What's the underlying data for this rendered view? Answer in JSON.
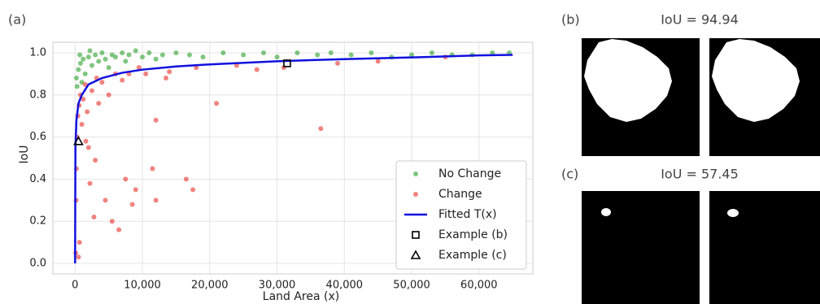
{
  "chart_data": {
    "type": "scatter",
    "panel_label": "(a)",
    "xlabel": "Land Area (x)",
    "ylabel": "IoU",
    "xlim": [
      -3300,
      68000
    ],
    "ylim": [
      -0.05,
      1.05
    ],
    "xticks": [
      {
        "value": 0,
        "label": "0"
      },
      {
        "value": 10000,
        "label": "10,000"
      },
      {
        "value": 20000,
        "label": "20,000"
      },
      {
        "value": 30000,
        "label": "30,000"
      },
      {
        "value": 40000,
        "label": "40,000"
      },
      {
        "value": 50000,
        "label": "50,000"
      },
      {
        "value": 60000,
        "label": "60,000"
      }
    ],
    "yticks": [
      {
        "value": 0,
        "label": "0.0"
      },
      0.2,
      0.4,
      0.6,
      0.8,
      {
        "value": 1,
        "label": "1.0"
      }
    ],
    "grid": true,
    "legend": "lower right",
    "series": [
      {
        "name": "No Change",
        "kind": "scatter",
        "color": "#2ca02c",
        "x": [
          200,
          500,
          800,
          1200,
          1500,
          2000,
          2500,
          3000,
          3500,
          4000,
          4500,
          5000,
          5500,
          6000,
          7000,
          7500,
          8000,
          9000,
          10000,
          11000,
          12000,
          13000,
          15000,
          17000,
          19000,
          22000,
          25000,
          28000,
          30000,
          33000,
          36000,
          38000,
          41000,
          44000,
          47000,
          50000,
          53000,
          56000,
          59000,
          62000,
          64500,
          300,
          1000,
          700,
          2200
        ],
        "y": [
          0.88,
          0.92,
          0.95,
          0.97,
          0.9,
          0.98,
          0.94,
          0.99,
          0.96,
          1.0,
          0.97,
          0.93,
          0.99,
          0.98,
          1.0,
          0.96,
          0.99,
          1.01,
          0.98,
          1.0,
          0.97,
          0.99,
          1.0,
          0.99,
          0.98,
          1.0,
          0.99,
          1.0,
          0.98,
          1.0,
          0.99,
          1.0,
          0.99,
          1.0,
          0.98,
          0.99,
          1.0,
          0.99,
          0.99,
          1.0,
          1.0,
          0.84,
          0.86,
          0.99,
          1.01
        ]
      },
      {
        "name": "Change",
        "kind": "scatter",
        "color": "#e8302a",
        "x": [
          100,
          150,
          200,
          300,
          400,
          600,
          800,
          1000,
          1200,
          1500,
          1800,
          2000,
          2200,
          2500,
          2800,
          3000,
          3500,
          4000,
          4500,
          5000,
          5500,
          6000,
          6500,
          7000,
          7500,
          8000,
          8500,
          9000,
          9500,
          10500,
          11500,
          12000,
          13500,
          16500,
          17500,
          18000,
          21000,
          24000,
          27000,
          31000,
          36500,
          39000,
          45000,
          55000,
          650,
          1600,
          3200,
          500,
          12000,
          14000
        ],
        "y": [
          0.05,
          0.3,
          0.45,
          0.6,
          0.7,
          0.75,
          0.8,
          0.66,
          0.78,
          0.85,
          0.72,
          0.55,
          0.38,
          0.82,
          0.22,
          0.49,
          0.76,
          0.86,
          0.3,
          0.8,
          0.2,
          0.9,
          0.16,
          0.87,
          0.4,
          0.9,
          0.28,
          0.35,
          0.93,
          0.9,
          0.45,
          0.3,
          0.88,
          0.4,
          0.35,
          0.93,
          0.76,
          0.94,
          0.92,
          0.93,
          0.64,
          0.95,
          0.96,
          0.98,
          0.1,
          0.58,
          0.88,
          0.03,
          0.68,
          0.91
        ]
      },
      {
        "name": "Fitted T(x)",
        "kind": "line",
        "color": "#1010e0",
        "x": [
          0,
          50,
          200,
          500,
          1000,
          2000,
          4000,
          7000,
          10000,
          15000,
          20000,
          30000,
          40000,
          50000,
          60000,
          65000
        ],
        "y": [
          0,
          0.55,
          0.68,
          0.76,
          0.8,
          0.85,
          0.88,
          0.905,
          0.92,
          0.935,
          0.945,
          0.96,
          0.97,
          0.978,
          0.988,
          0.99
        ]
      },
      {
        "name": "Example (b)",
        "kind": "marker",
        "marker": "square",
        "color": "#000000",
        "x": [
          31500
        ],
        "y": [
          0.95
        ]
      },
      {
        "name": "Example (c)",
        "kind": "marker",
        "marker": "triangle",
        "color": "#000000",
        "x": [
          500
        ],
        "y": [
          0.58
        ]
      }
    ]
  },
  "image_panels": [
    {
      "label": "(b)",
      "title": "IoU = 94.94"
    },
    {
      "label": "(c)",
      "title": "IoU = 57.45"
    }
  ]
}
